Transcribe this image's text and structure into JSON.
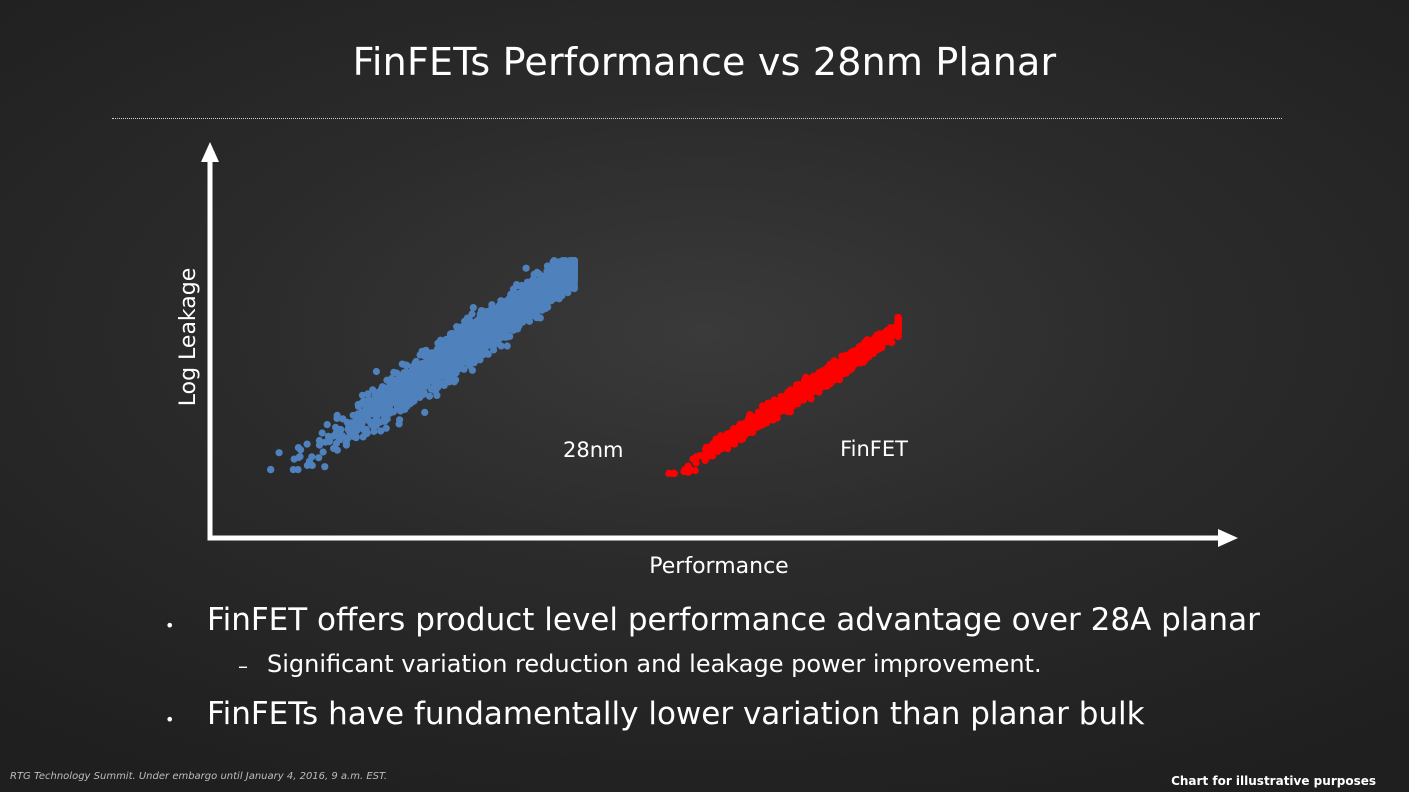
{
  "title": "FinFETs Performance vs 28nm Planar",
  "bullets": [
    {
      "text": "FinFET offers product level performance advantage over 28A planar",
      "sub": "Significant variation reduction and leakage power improvement."
    },
    {
      "text": "FinFETs have fundamentally lower variation than planar bulk"
    }
  ],
  "footer": {
    "left": "RTG Technology Summit. Under embargo until January 4, 2016, 9 a.m. EST.",
    "right": "Chart for illustrative purposes"
  },
  "chart_data": {
    "type": "scatter",
    "xlabel": "Performance",
    "ylabel": "Log Leakage",
    "xlim": [
      0,
      100
    ],
    "ylim": [
      0,
      100
    ],
    "grid": false,
    "series": [
      {
        "name": "28nm",
        "color": "#4f81bd",
        "center": [
          27,
          54
        ],
        "x_range": [
          6,
          36
        ],
        "y_range": [
          18,
          73
        ],
        "points": 2600
      },
      {
        "name": "FinFET",
        "color": "#ff0000",
        "center": [
          60,
          41
        ],
        "x_range": [
          44,
          68
        ],
        "y_range": [
          17,
          58
        ],
        "points": 1900
      }
    ]
  }
}
